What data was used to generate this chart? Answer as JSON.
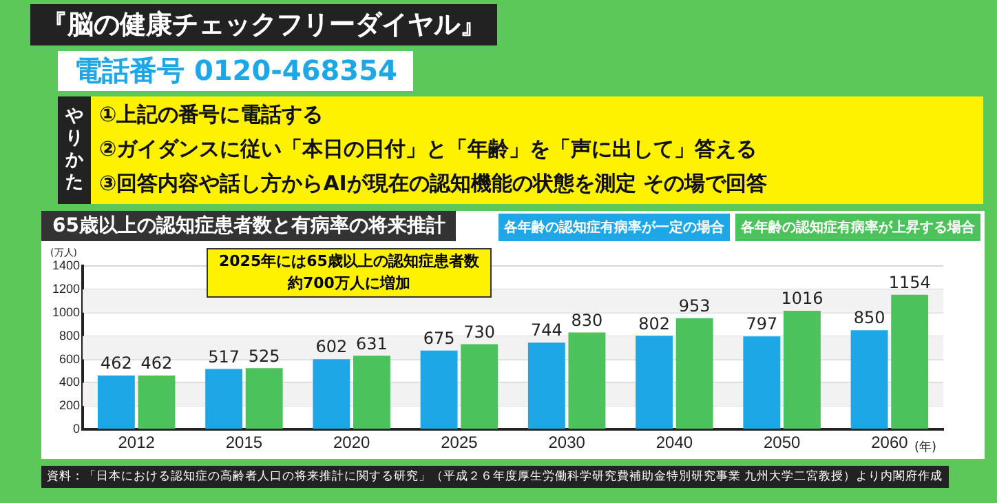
{
  "chart_data": {
    "type": "bar",
    "title": "65歳以上の認知症患者数と有病率の将来推計",
    "categories": [
      "2012",
      "2015",
      "2020",
      "2025",
      "2030",
      "2040",
      "2050",
      "2060"
    ],
    "xlabel": "(年)",
    "ylabel": "(万人)",
    "series": [
      {
        "name": "各年齢の認知症有病率が一定の場合",
        "color": "#1ea7e6",
        "values": [
          462,
          517,
          602,
          675,
          744,
          802,
          797,
          850
        ]
      },
      {
        "name": "各年齢の認知症有病率が上昇する場合",
        "color": "#4cc35a",
        "values": [
          462,
          525,
          631,
          730,
          830,
          953,
          1016,
          1154
        ]
      }
    ],
    "ylim": [
      0,
      1400
    ],
    "yticks": [
      0,
      200,
      400,
      600,
      800,
      1000,
      1200,
      1400
    ],
    "grid": "y",
    "legend": "top right",
    "data_labels": true,
    "annotations": [
      "『脳の健康チェックフリーダイヤル』",
      "電話番号 0120-468354",
      "やりかた",
      "①上記の番号に電話する",
      "②ガイダンスに従い「本日の日付」と「年齢」を「声に出して」答える",
      "③回答内容や話し方からAIが現在の認知機能の状態を測定 その場で回答",
      "2025年には65歳以上の認知症患者数",
      "約700万人に増加",
      "資料：「日本における認知症の高齢者人口の将来推計に関する研究」（平成２６年度厚生労働科学研究費補助金特別研究事業 九州大学二宮教授）より内閣府作成"
    ]
  }
}
